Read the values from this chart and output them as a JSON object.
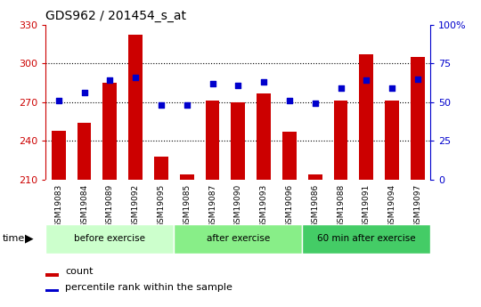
{
  "title": "GDS962 / 201454_s_at",
  "categories": [
    "GSM19083",
    "GSM19084",
    "GSM19089",
    "GSM19092",
    "GSM19095",
    "GSM19085",
    "GSM19087",
    "GSM19090",
    "GSM19093",
    "GSM19096",
    "GSM19086",
    "GSM19088",
    "GSM19091",
    "GSM19094",
    "GSM19097"
  ],
  "bar_values": [
    248,
    254,
    285,
    322,
    228,
    214,
    271,
    270,
    277,
    247,
    214,
    271,
    307,
    271,
    305
  ],
  "percentile_values": [
    51,
    56,
    64,
    66,
    48,
    48,
    62,
    61,
    63,
    51,
    49,
    59,
    64,
    59,
    65
  ],
  "ylim_left": [
    210,
    330
  ],
  "ylim_right": [
    0,
    100
  ],
  "yticks_left": [
    210,
    240,
    270,
    300,
    330
  ],
  "yticks_right": [
    0,
    25,
    50,
    75,
    100
  ],
  "bar_color": "#cc0000",
  "dot_color": "#0000cc",
  "grid_color": "#000000",
  "background_color": "#ffffff",
  "tick_area_color": "#c8c8c8",
  "groups": [
    {
      "label": "before exercise",
      "start": 0,
      "end": 5,
      "color": "#ccffcc"
    },
    {
      "label": "after exercise",
      "start": 5,
      "end": 10,
      "color": "#88ee88"
    },
    {
      "label": "60 min after exercise",
      "start": 10,
      "end": 15,
      "color": "#44cc66"
    }
  ],
  "legend_count_label": "count",
  "legend_pct_label": "percentile rank within the sample",
  "bar_width": 0.55,
  "left_axis_color": "#cc0000",
  "right_axis_color": "#0000cc",
  "grid_yticks": [
    240,
    270,
    300
  ],
  "dot_size": 20
}
